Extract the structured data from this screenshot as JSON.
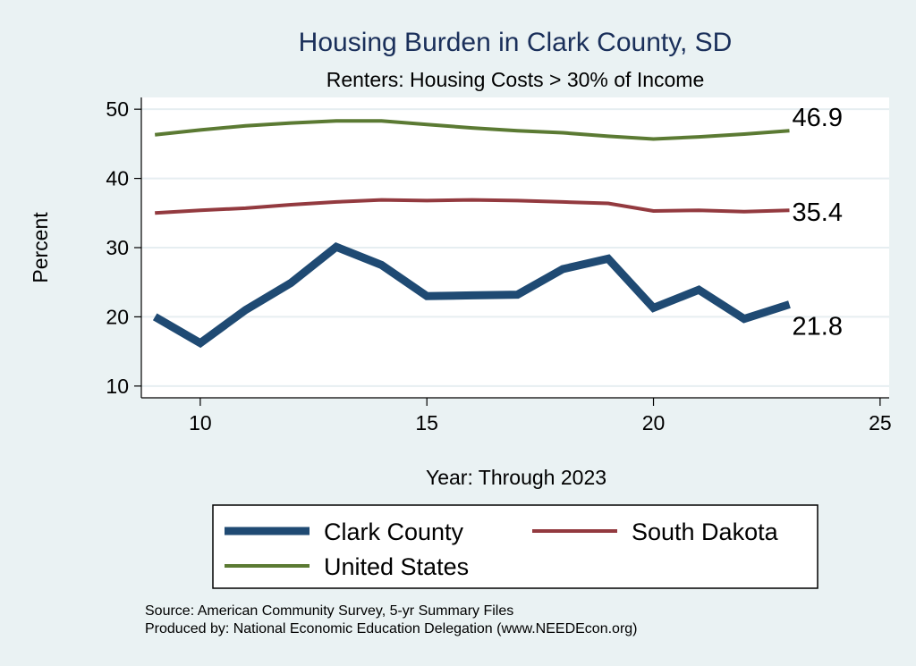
{
  "chart_data": {
    "type": "line",
    "title": "Housing Burden in Clark County, SD",
    "subtitle": "Renters: Housing Costs > 30% of Income",
    "xlabel": "Year: Through 2023",
    "ylabel": "Percent",
    "xlim": [
      8.7,
      25.2
    ],
    "ylim": [
      8.3,
      51.7
    ],
    "xticks": [
      10,
      15,
      20,
      25
    ],
    "yticks": [
      10,
      20,
      30,
      40,
      50
    ],
    "grid": true,
    "legend_position": "bottom",
    "x": [
      9,
      10,
      11,
      12,
      13,
      14,
      15,
      16,
      17,
      18,
      19,
      20,
      21,
      22,
      23
    ],
    "series": [
      {
        "name": "Clark County",
        "color": "#1f4a73",
        "width": 9,
        "end_label": "21.8",
        "values": [
          20.0,
          16.2,
          21.0,
          24.9,
          30.1,
          27.5,
          23.0,
          23.1,
          23.2,
          26.9,
          28.4,
          21.3,
          23.9,
          19.7,
          21.8
        ]
      },
      {
        "name": "South Dakota",
        "color": "#933a3f",
        "width": 4,
        "end_label": "35.4",
        "values": [
          35.0,
          35.4,
          35.7,
          36.2,
          36.6,
          36.9,
          36.8,
          36.9,
          36.8,
          36.6,
          36.4,
          35.3,
          35.4,
          35.2,
          35.4
        ]
      },
      {
        "name": "United States",
        "color": "#5b7a33",
        "width": 4,
        "end_label": "46.9",
        "values": [
          46.3,
          47.0,
          47.6,
          48.0,
          48.3,
          48.3,
          47.8,
          47.3,
          46.9,
          46.6,
          46.1,
          45.7,
          46.0,
          46.4,
          46.9
        ]
      }
    ],
    "source_notes": [
      "Source: American Community Survey, 5-yr Summary Files",
      "Produced by: National Economic Education Delegation (www.NEEDEcon.org)"
    ]
  }
}
